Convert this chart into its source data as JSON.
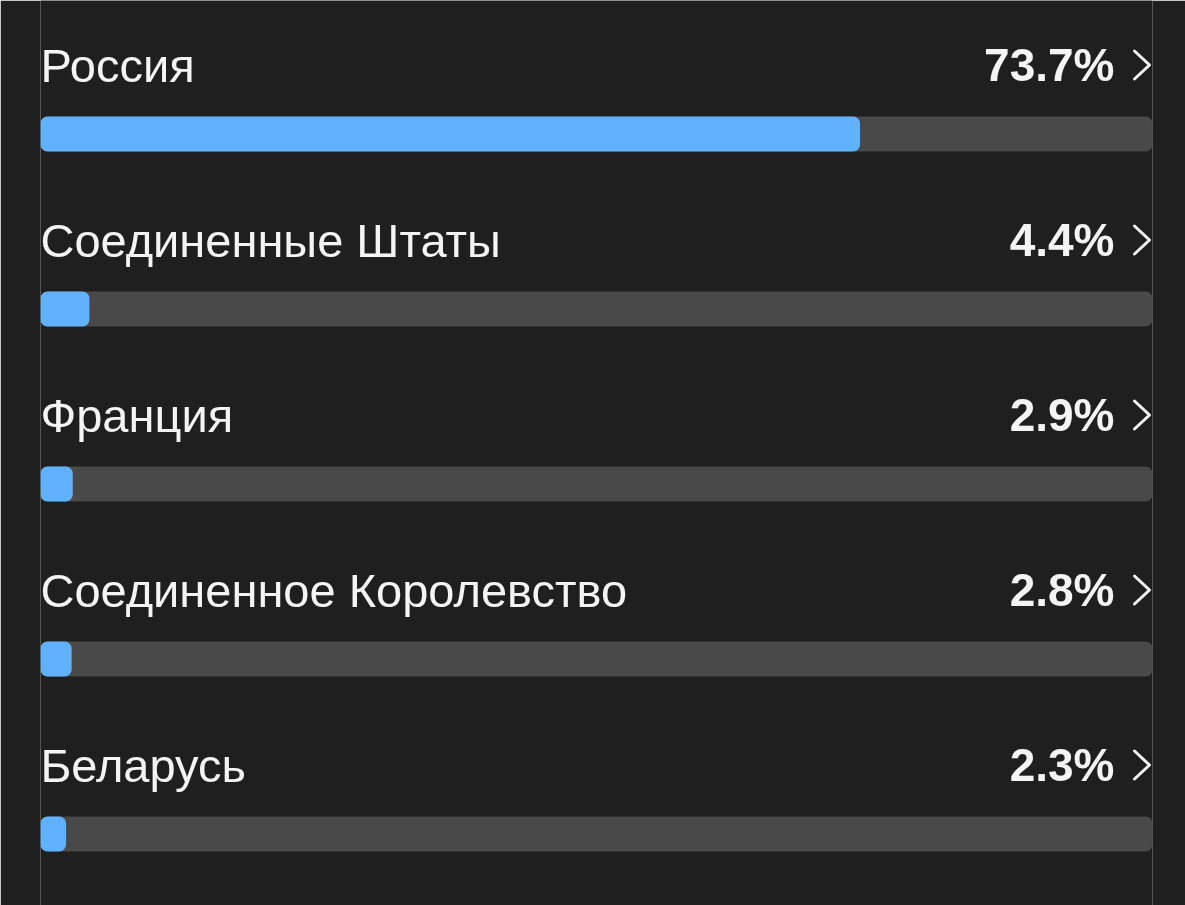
{
  "chart_data": {
    "type": "bar",
    "orientation": "horizontal",
    "categories": [
      "Россия",
      "Соединенные Штаты",
      "Франция",
      "Соединенное Королевство",
      "Беларусь"
    ],
    "values": [
      73.7,
      4.4,
      2.9,
      2.8,
      2.3
    ],
    "value_labels": [
      "73.7%",
      "4.4%",
      "2.9%",
      "2.8%",
      "2.3%"
    ],
    "color": "#60b2ff",
    "xlim": [
      0,
      100
    ],
    "tick_labels": false,
    "grid": false
  }
}
